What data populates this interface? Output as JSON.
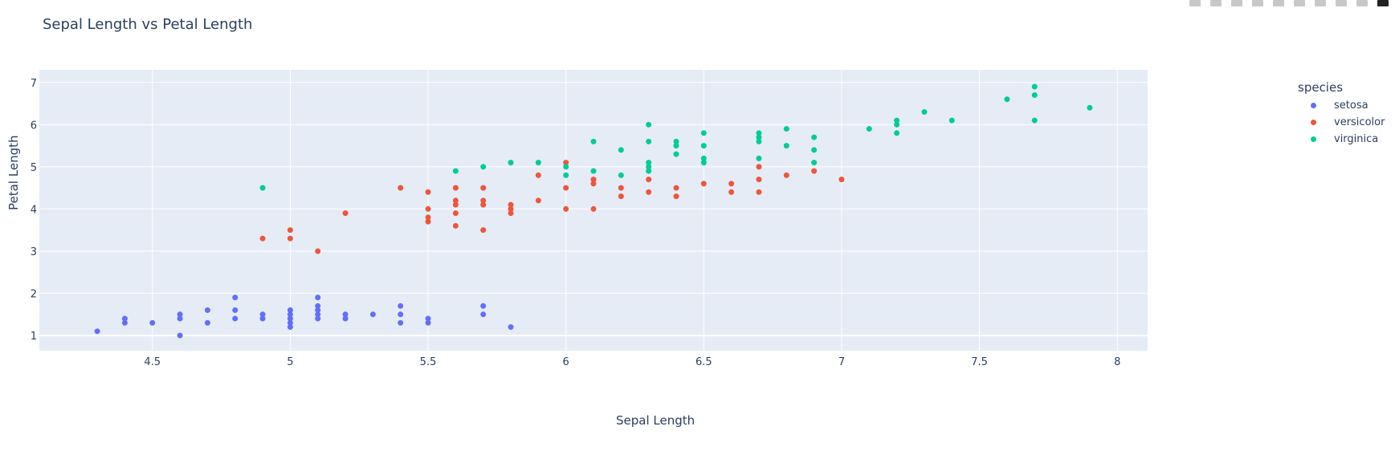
{
  "title": "Sepal Length vs Petal Length",
  "modebar": {
    "buttons": [
      "camera-icon",
      "zoom-icon",
      "pan-icon",
      "box-select-icon",
      "lasso-select-icon",
      "zoom-in-icon",
      "zoom-out-icon",
      "autoscale-icon",
      "reset-axes-icon",
      "plotly-logo-icon"
    ]
  },
  "legend": {
    "title": "species",
    "items": [
      {
        "label": "setosa",
        "color": "#636efa"
      },
      {
        "label": "versicolor",
        "color": "#ef553b"
      },
      {
        "label": "virginica",
        "color": "#00cc96"
      }
    ]
  },
  "colors": {
    "plot_bg": "#e5ecf6",
    "grid": "#ffffff",
    "text": "#2a3f5f"
  },
  "chart_data": {
    "type": "scatter",
    "title": "Sepal Length vs Petal Length",
    "xlabel": "Sepal Length",
    "ylabel": "Petal Length",
    "xlim": [
      4.09,
      8.11
    ],
    "ylim": [
      0.64,
      7.3
    ],
    "xticks": [
      "4.5",
      "5",
      "5.5",
      "6",
      "6.5",
      "7",
      "7.5",
      "8"
    ],
    "yticks": [
      "1",
      "2",
      "3",
      "4",
      "5",
      "6",
      "7"
    ],
    "grid": true,
    "legend_position": "right",
    "series": [
      {
        "name": "setosa",
        "color": "#636efa",
        "points": [
          [
            4.3,
            1.1
          ],
          [
            4.4,
            1.3
          ],
          [
            4.4,
            1.4
          ],
          [
            4.5,
            1.3
          ],
          [
            4.6,
            1.0
          ],
          [
            4.6,
            1.4
          ],
          [
            4.6,
            1.5
          ],
          [
            4.7,
            1.3
          ],
          [
            4.7,
            1.6
          ],
          [
            4.8,
            1.4
          ],
          [
            4.8,
            1.6
          ],
          [
            4.8,
            1.9
          ],
          [
            4.9,
            1.4
          ],
          [
            4.9,
            1.5
          ],
          [
            5.0,
            1.2
          ],
          [
            5.0,
            1.3
          ],
          [
            5.0,
            1.4
          ],
          [
            5.0,
            1.5
          ],
          [
            5.0,
            1.6
          ],
          [
            5.1,
            1.4
          ],
          [
            5.1,
            1.5
          ],
          [
            5.1,
            1.6
          ],
          [
            5.1,
            1.7
          ],
          [
            5.1,
            1.9
          ],
          [
            5.2,
            1.4
          ],
          [
            5.2,
            1.5
          ],
          [
            5.3,
            1.5
          ],
          [
            5.4,
            1.3
          ],
          [
            5.4,
            1.5
          ],
          [
            5.4,
            1.7
          ],
          [
            5.5,
            1.3
          ],
          [
            5.5,
            1.4
          ],
          [
            5.7,
            1.5
          ],
          [
            5.7,
            1.7
          ],
          [
            5.8,
            1.2
          ]
        ]
      },
      {
        "name": "versicolor",
        "color": "#ef553b",
        "points": [
          [
            4.9,
            3.3
          ],
          [
            5.0,
            3.3
          ],
          [
            5.0,
            3.5
          ],
          [
            5.1,
            3.0
          ],
          [
            5.2,
            3.9
          ],
          [
            5.4,
            4.5
          ],
          [
            5.5,
            3.7
          ],
          [
            5.5,
            3.8
          ],
          [
            5.5,
            4.0
          ],
          [
            5.5,
            4.4
          ],
          [
            5.6,
            3.6
          ],
          [
            5.6,
            3.9
          ],
          [
            5.6,
            4.1
          ],
          [
            5.6,
            4.2
          ],
          [
            5.6,
            4.5
          ],
          [
            5.7,
            3.5
          ],
          [
            5.7,
            4.1
          ],
          [
            5.7,
            4.2
          ],
          [
            5.7,
            4.5
          ],
          [
            5.8,
            3.9
          ],
          [
            5.8,
            4.0
          ],
          [
            5.8,
            4.1
          ],
          [
            5.9,
            4.2
          ],
          [
            5.9,
            4.8
          ],
          [
            6.0,
            4.0
          ],
          [
            6.0,
            4.5
          ],
          [
            6.0,
            5.1
          ],
          [
            6.1,
            4.0
          ],
          [
            6.1,
            4.6
          ],
          [
            6.1,
            4.7
          ],
          [
            6.2,
            4.3
          ],
          [
            6.2,
            4.5
          ],
          [
            6.3,
            4.4
          ],
          [
            6.3,
            4.7
          ],
          [
            6.4,
            4.3
          ],
          [
            6.4,
            4.5
          ],
          [
            6.5,
            4.6
          ],
          [
            6.6,
            4.4
          ],
          [
            6.6,
            4.6
          ],
          [
            6.7,
            4.4
          ],
          [
            6.7,
            4.7
          ],
          [
            6.7,
            5.0
          ],
          [
            6.8,
            4.8
          ],
          [
            6.9,
            4.9
          ],
          [
            7.0,
            4.7
          ]
        ]
      },
      {
        "name": "virginica",
        "color": "#00cc96",
        "points": [
          [
            4.9,
            4.5
          ],
          [
            5.6,
            4.9
          ],
          [
            5.7,
            5.0
          ],
          [
            5.8,
            5.1
          ],
          [
            5.9,
            5.1
          ],
          [
            6.0,
            4.8
          ],
          [
            6.0,
            5.0
          ],
          [
            6.1,
            4.9
          ],
          [
            6.1,
            5.6
          ],
          [
            6.2,
            4.8
          ],
          [
            6.2,
            5.4
          ],
          [
            6.3,
            4.9
          ],
          [
            6.3,
            5.0
          ],
          [
            6.3,
            5.1
          ],
          [
            6.3,
            5.6
          ],
          [
            6.3,
            6.0
          ],
          [
            6.4,
            5.3
          ],
          [
            6.4,
            5.5
          ],
          [
            6.4,
            5.6
          ],
          [
            6.5,
            5.1
          ],
          [
            6.5,
            5.2
          ],
          [
            6.5,
            5.5
          ],
          [
            6.5,
            5.8
          ],
          [
            6.7,
            5.2
          ],
          [
            6.7,
            5.6
          ],
          [
            6.7,
            5.7
          ],
          [
            6.7,
            5.8
          ],
          [
            6.8,
            5.5
          ],
          [
            6.8,
            5.9
          ],
          [
            6.9,
            5.1
          ],
          [
            6.9,
            5.4
          ],
          [
            6.9,
            5.7
          ],
          [
            7.1,
            5.9
          ],
          [
            7.2,
            5.8
          ],
          [
            7.2,
            6.0
          ],
          [
            7.2,
            6.1
          ],
          [
            7.3,
            6.3
          ],
          [
            7.4,
            6.1
          ],
          [
            7.6,
            6.6
          ],
          [
            7.7,
            6.1
          ],
          [
            7.7,
            6.7
          ],
          [
            7.7,
            6.9
          ],
          [
            7.9,
            6.4
          ]
        ]
      }
    ]
  }
}
